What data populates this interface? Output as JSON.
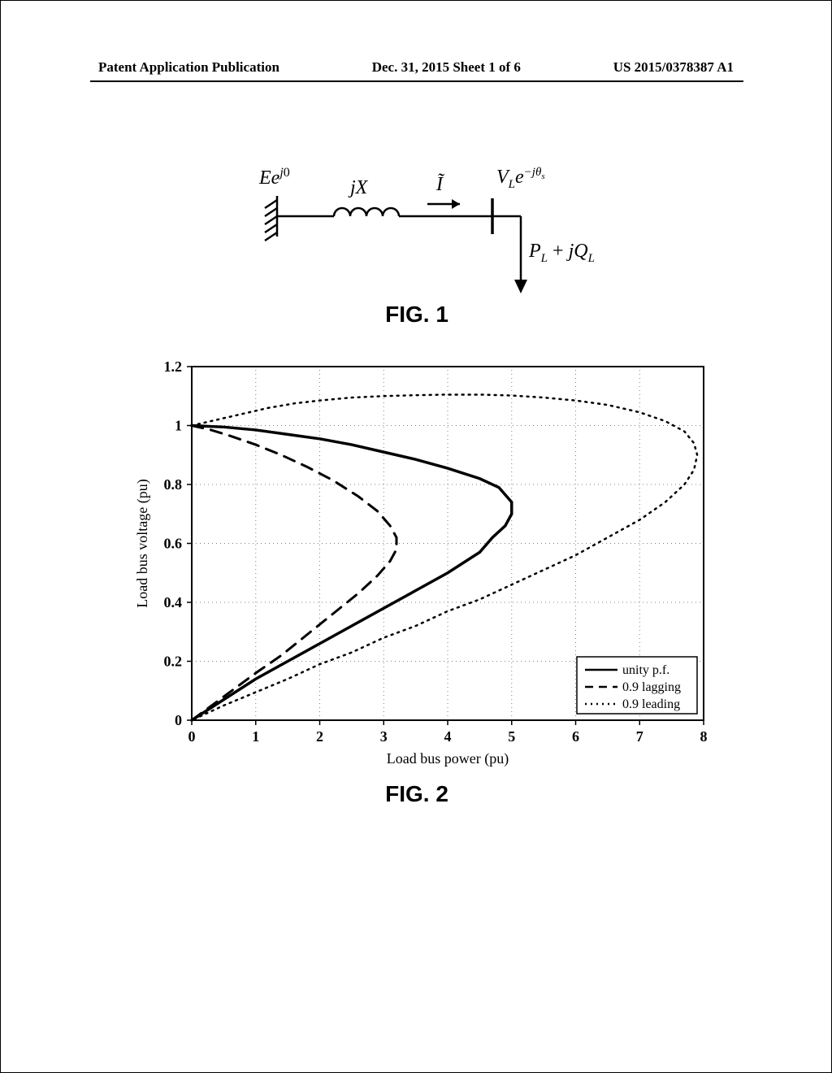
{
  "header": {
    "left": "Patent Application Publication",
    "center": "Dec. 31, 2015  Sheet 1 of 6",
    "right": "US 2015/0378387 A1"
  },
  "figure1": {
    "label": "FIG. 1",
    "source_label": "Ee^{j0}",
    "impedance_label": "jX",
    "current_label": "Ĩ",
    "load_voltage_label": "V_L e^{-jθ_s}",
    "load_power_label": "P_L + jQ_L"
  },
  "figure2": {
    "label": "FIG. 2",
    "type": "line",
    "xlabel": "Load bus power (pu)",
    "ylabel": "Load bus voltage (pu)",
    "xlabel_fontsize": 18,
    "ylabel_fontsize": 18,
    "tick_fontsize": 18,
    "xlim": [
      0,
      8
    ],
    "ylim": [
      0,
      1.2
    ],
    "xtick_step": 1,
    "ytick_step": 0.2,
    "grid_color": "#808080",
    "grid_style": "dotted",
    "background_color": "#ffffff",
    "axis_color": "#000000",
    "series": [
      {
        "name": "unity p.f.",
        "style": "solid",
        "color": "#000000",
        "width": 3.5,
        "points": [
          [
            0,
            1.0
          ],
          [
            0.5,
            0.995
          ],
          [
            1.0,
            0.985
          ],
          [
            1.5,
            0.97
          ],
          [
            2.0,
            0.955
          ],
          [
            2.5,
            0.935
          ],
          [
            3.0,
            0.91
          ],
          [
            3.5,
            0.885
          ],
          [
            4.0,
            0.855
          ],
          [
            4.5,
            0.82
          ],
          [
            4.8,
            0.79
          ],
          [
            5.0,
            0.74
          ],
          [
            5.0,
            0.7
          ],
          [
            4.9,
            0.66
          ],
          [
            4.7,
            0.62
          ],
          [
            4.5,
            0.57
          ],
          [
            4.0,
            0.5
          ],
          [
            3.5,
            0.44
          ],
          [
            3.0,
            0.38
          ],
          [
            2.5,
            0.32
          ],
          [
            2.0,
            0.26
          ],
          [
            1.5,
            0.2
          ],
          [
            1.0,
            0.14
          ],
          [
            0.5,
            0.07
          ],
          [
            0,
            0
          ]
        ]
      },
      {
        "name": "0.9 lagging",
        "style": "dashed",
        "color": "#000000",
        "width": 3.0,
        "points": [
          [
            0,
            1.0
          ],
          [
            0.3,
            0.985
          ],
          [
            0.6,
            0.965
          ],
          [
            1.0,
            0.935
          ],
          [
            1.4,
            0.9
          ],
          [
            1.8,
            0.86
          ],
          [
            2.2,
            0.815
          ],
          [
            2.6,
            0.76
          ],
          [
            2.9,
            0.71
          ],
          [
            3.1,
            0.66
          ],
          [
            3.2,
            0.62
          ],
          [
            3.2,
            0.58
          ],
          [
            3.1,
            0.54
          ],
          [
            2.9,
            0.49
          ],
          [
            2.6,
            0.43
          ],
          [
            2.2,
            0.36
          ],
          [
            1.8,
            0.29
          ],
          [
            1.4,
            0.22
          ],
          [
            1.0,
            0.16
          ],
          [
            0.5,
            0.08
          ],
          [
            0,
            0
          ]
        ]
      },
      {
        "name": "0.9 leading",
        "style": "dotted",
        "color": "#000000",
        "width": 2.5,
        "points": [
          [
            0,
            1.0
          ],
          [
            0.4,
            1.02
          ],
          [
            0.8,
            1.04
          ],
          [
            1.2,
            1.06
          ],
          [
            1.6,
            1.075
          ],
          [
            2.0,
            1.085
          ],
          [
            2.5,
            1.095
          ],
          [
            3.0,
            1.1
          ],
          [
            3.5,
            1.103
          ],
          [
            4.0,
            1.105
          ],
          [
            4.5,
            1.105
          ],
          [
            5.0,
            1.102
          ],
          [
            5.5,
            1.095
          ],
          [
            6.0,
            1.085
          ],
          [
            6.5,
            1.07
          ],
          [
            7.0,
            1.045
          ],
          [
            7.4,
            1.015
          ],
          [
            7.7,
            0.98
          ],
          [
            7.85,
            0.94
          ],
          [
            7.9,
            0.9
          ],
          [
            7.85,
            0.85
          ],
          [
            7.7,
            0.8
          ],
          [
            7.4,
            0.74
          ],
          [
            7.0,
            0.68
          ],
          [
            6.5,
            0.62
          ],
          [
            6.0,
            0.56
          ],
          [
            5.5,
            0.51
          ],
          [
            5.0,
            0.46
          ],
          [
            4.5,
            0.41
          ],
          [
            4.0,
            0.37
          ],
          [
            3.5,
            0.32
          ],
          [
            3.0,
            0.28
          ],
          [
            2.5,
            0.23
          ],
          [
            2.0,
            0.19
          ],
          [
            1.5,
            0.14
          ],
          [
            1.0,
            0.095
          ],
          [
            0.5,
            0.05
          ],
          [
            0,
            0
          ]
        ]
      }
    ],
    "legend": {
      "position": "bottom-right",
      "fontsize": 16,
      "items": [
        "unity p.f.",
        "0.9 lagging",
        "0.9 leading"
      ]
    }
  }
}
